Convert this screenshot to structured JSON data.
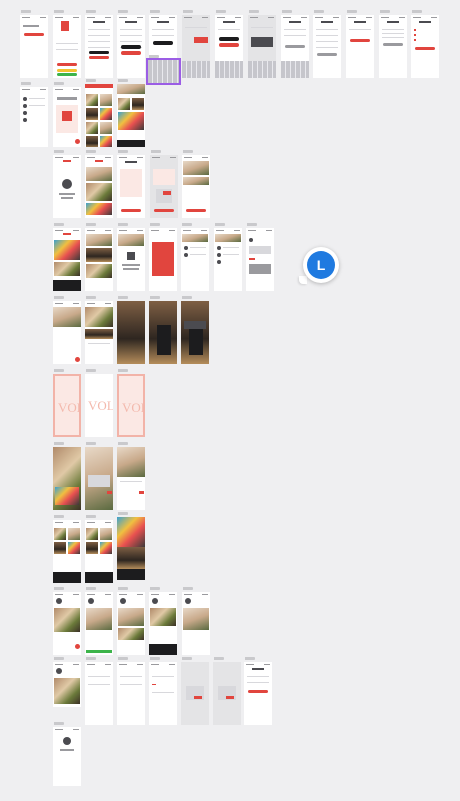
{
  "canvas": {
    "background": "#efeff1",
    "accent_red": "#e1453e",
    "selection_color": "#9b5de5"
  },
  "collaborator": {
    "initial": "L",
    "color": "#1f7ae0"
  },
  "watermark_text": "VOLL",
  "frame_count": 70
}
